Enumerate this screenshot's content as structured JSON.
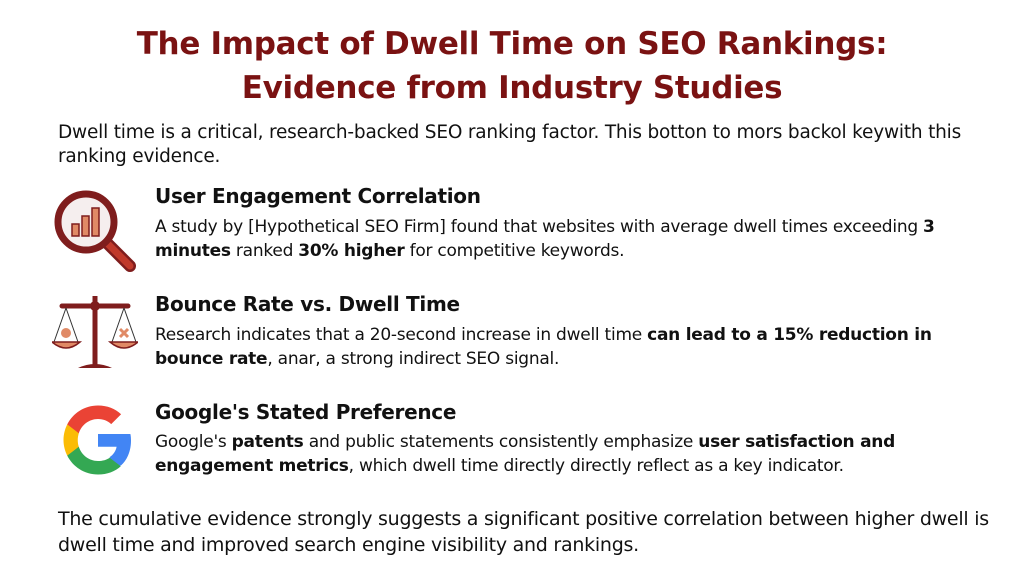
{
  "title": {
    "line1": "The Impact of Dwell Time on SEO Rankings:",
    "line2": "Evidence from Industry Studies"
  },
  "intro": "Dwell time is a critical, research-backed SEO ranking factor. This botton to mors backol keywith this ranking evidence.",
  "sections": [
    {
      "icon": "magnifier-chart-icon",
      "heading": "User Engagement Correlation",
      "segments": [
        {
          "t": "A study by [Hypothetical SEO Firm] found that websites with average dwell times exceeding ",
          "bold": false
        },
        {
          "t": "3 minutes",
          "bold": true
        },
        {
          "t": " ranked ",
          "bold": false
        },
        {
          "t": "30% higher",
          "bold": true
        },
        {
          "t": " for competitive keywords.",
          "bold": false
        }
      ]
    },
    {
      "icon": "balance-scale-icon",
      "heading": "Bounce Rate vs. Dwell Time",
      "segments": [
        {
          "t": "Research indicates that a 20-second increase in dwell time ",
          "bold": false
        },
        {
          "t": "can lead to a 15% reduction in bounce rate",
          "bold": true
        },
        {
          "t": ", anar, a strong indirect SEO signal.",
          "bold": false
        }
      ]
    },
    {
      "icon": "google-logo-icon",
      "heading": "Google's Stated Preference",
      "segments": [
        {
          "t": "Google's ",
          "bold": false
        },
        {
          "t": "patents",
          "bold": true
        },
        {
          "t": " and public statements consistently emphasize ",
          "bold": false
        },
        {
          "t": "user satisfaction and engagement metrics",
          "bold": true
        },
        {
          "t": ", which dwell time directly directly reflect as a key indicator.",
          "bold": false
        }
      ]
    }
  ],
  "conclusion": "The cumulative evidence strongly suggests a significant positive correlation between higher dwell is dwell time and improved search engine visibility and rankings.",
  "colors": {
    "title": "#7a1212",
    "icon_dark": "#7f1d1d",
    "icon_light": "#e08a66"
  }
}
